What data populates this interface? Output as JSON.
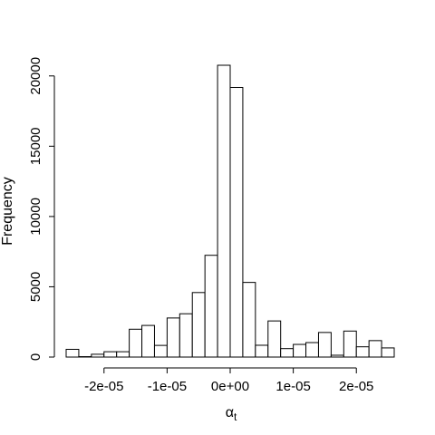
{
  "chart_data": {
    "type": "bar",
    "title": "",
    "xlabel": "α",
    "xlabel_subscript": "t",
    "ylabel": "Frequency",
    "bin_width": 2e-06,
    "bin_start": -2.6e-05,
    "values": [
      550,
      30,
      200,
      380,
      380,
      1980,
      2250,
      830,
      2780,
      3080,
      4590,
      7240,
      20760,
      19180,
      5310,
      840,
      2570,
      600,
      900,
      1030,
      1750,
      130,
      1850,
      730,
      1170,
      650
    ],
    "xlim": [
      -2.6e-05,
      2.6e-05
    ],
    "ylim": [
      0,
      20760
    ],
    "x_ticks": [
      -2e-05,
      -1e-05,
      0,
      1e-05,
      2e-05
    ],
    "x_tick_labels": [
      "-2e-05",
      "-1e-05",
      "0e+00",
      "1e-05",
      "2e-05"
    ],
    "y_ticks": [
      0,
      5000,
      10000,
      15000,
      20000
    ],
    "y_tick_labels": [
      "0",
      "5000",
      "10000",
      "15000",
      "20000"
    ],
    "grid": false,
    "legend": "none"
  }
}
